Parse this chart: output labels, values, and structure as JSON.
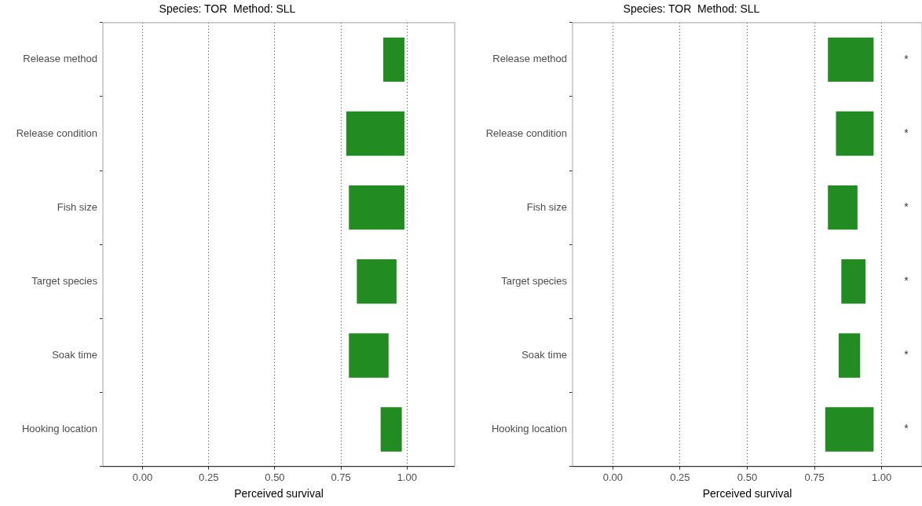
{
  "chart_data": [
    {
      "type": "bar",
      "orientation": "horizontal",
      "title": "Species: TOR  Method: SLL",
      "xlabel": "Perceived survival",
      "categories": [
        "Release method",
        "Release condition",
        "Fish size",
        "Target species",
        "Soak time",
        "Hooking location"
      ],
      "base": [
        0.91,
        0.77,
        0.78,
        0.81,
        0.78,
        0.9
      ],
      "values": [
        0.08,
        0.22,
        0.21,
        0.15,
        0.15,
        0.08
      ],
      "color": "#228b22",
      "xlim": [
        -0.15,
        1.18
      ],
      "xticks": [
        {
          "value": 0,
          "label": "0.00"
        },
        {
          "value": 0.25,
          "label": "0.25"
        },
        {
          "value": 0.5,
          "label": "0.50"
        },
        {
          "value": 0.75,
          "label": "0.75"
        },
        {
          "value": 1,
          "label": "1.00"
        }
      ],
      "grid": "x"
    },
    {
      "type": "bar",
      "orientation": "horizontal",
      "title": "Species: TOR  Method: SLL",
      "xlabel": "Perceived survival",
      "categories": [
        "Release method",
        "Release condition",
        "Fish size",
        "Target species",
        "Soak time",
        "Hooking location"
      ],
      "base": [
        0.8,
        0.83,
        0.8,
        0.85,
        0.84,
        0.79
      ],
      "values": [
        0.17,
        0.14,
        0.11,
        0.09,
        0.08,
        0.18
      ],
      "color": "#228b22",
      "xlim": [
        -0.15,
        1.15
      ],
      "xticks": [
        {
          "value": 0,
          "label": "0.00"
        },
        {
          "value": 0.25,
          "label": "0.25"
        },
        {
          "value": 0.5,
          "label": "0.50"
        },
        {
          "value": 0.75,
          "label": "0.75"
        },
        {
          "value": 1,
          "label": "1.00"
        }
      ],
      "grid": "x",
      "annotations": [
        "*",
        "*",
        "*",
        "*",
        "*",
        "*"
      ]
    }
  ]
}
